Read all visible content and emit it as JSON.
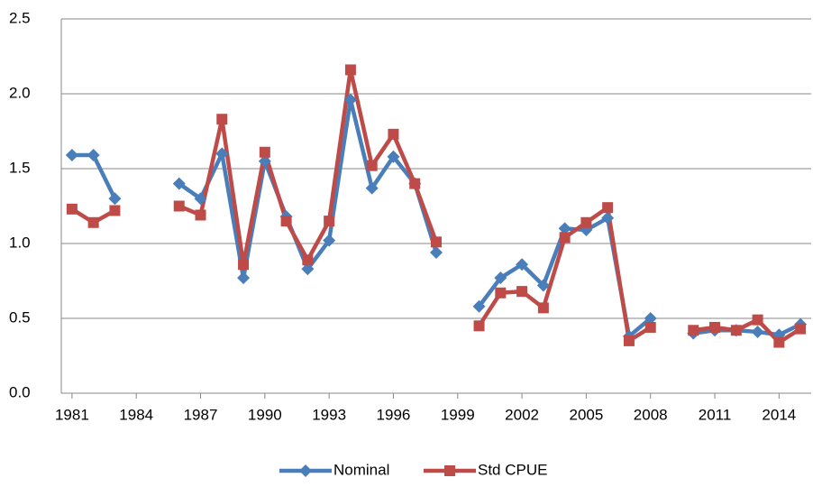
{
  "chart_data": {
    "type": "line",
    "x": [
      1981,
      1982,
      1983,
      1984,
      1985,
      1986,
      1987,
      1988,
      1989,
      1990,
      1991,
      1992,
      1993,
      1994,
      1995,
      1996,
      1997,
      1998,
      1999,
      2000,
      2001,
      2002,
      2003,
      2004,
      2005,
      2006,
      2007,
      2008,
      2009,
      2010,
      2011,
      2012,
      2013,
      2014,
      2015
    ],
    "series": [
      {
        "name": "Nominal",
        "color": "#4a7ebb",
        "marker": "diamond",
        "values": [
          1.59,
          1.59,
          1.3,
          null,
          null,
          1.4,
          1.3,
          1.6,
          0.77,
          1.55,
          1.18,
          0.83,
          1.02,
          1.96,
          1.37,
          1.58,
          1.4,
          0.94,
          null,
          0.58,
          0.77,
          0.86,
          0.72,
          1.1,
          1.09,
          1.17,
          0.38,
          0.5,
          null,
          0.4,
          0.42,
          0.42,
          0.41,
          0.39,
          0.46
        ]
      },
      {
        "name": "Std CPUE",
        "color": "#be4b48",
        "marker": "square",
        "values": [
          1.23,
          1.14,
          1.22,
          null,
          null,
          1.25,
          1.19,
          1.83,
          0.86,
          1.61,
          1.15,
          0.89,
          1.15,
          2.16,
          1.52,
          1.73,
          1.4,
          1.01,
          null,
          0.45,
          0.67,
          0.68,
          0.57,
          1.04,
          1.14,
          1.24,
          0.35,
          0.44,
          null,
          0.42,
          0.44,
          0.42,
          0.49,
          0.34,
          0.43
        ]
      }
    ],
    "xlim": [
      1980.5,
      2015.5
    ],
    "xticks": [
      1981,
      1984,
      1987,
      1990,
      1993,
      1996,
      1999,
      2002,
      2005,
      2008,
      2011,
      2014
    ],
    "ylim": [
      0,
      2.5
    ],
    "yticks": [
      {
        "value": 0,
        "label": "0.0"
      },
      0.5,
      {
        "value": 1,
        "label": "1.0"
      },
      1.5,
      {
        "value": 2,
        "label": "2.0"
      },
      2.5
    ],
    "grid": true,
    "legend": "bottom"
  }
}
